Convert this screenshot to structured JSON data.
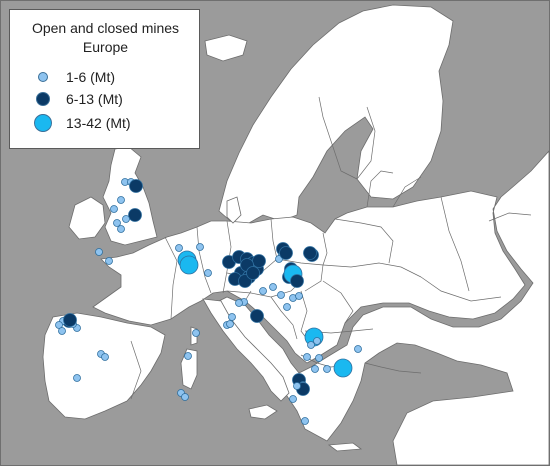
{
  "legend": {
    "title_line1": "Open and closed mines",
    "title_line2": "Europe",
    "items": [
      {
        "label": "1-6 (Mt)",
        "color": "#8ec3ef",
        "size_class": "small"
      },
      {
        "label": "6-13 (Mt)",
        "color": "#0b3a66",
        "size_class": "medium"
      },
      {
        "label": "13-42 (Mt)",
        "color": "#1ab8f0",
        "size_class": "large"
      }
    ]
  },
  "colors": {
    "sea": "#9b9b9b",
    "land": "#ffffff",
    "border": "#6d6d6d"
  },
  "mines": [
    {
      "class": "small"
    },
    {
      "class": "small"
    },
    {
      "class": "medium"
    },
    {
      "class": "small"
    },
    {
      "class": "small"
    },
    {
      "class": "medium"
    },
    {
      "class": "small"
    },
    {
      "class": "small"
    },
    {
      "class": "small"
    },
    {
      "class": "small"
    },
    {
      "class": "small"
    },
    {
      "class": "large"
    },
    {
      "class": "large"
    },
    {
      "class": "small"
    },
    {
      "class": "small"
    },
    {
      "class": "small"
    },
    {
      "class": "medium"
    },
    {
      "class": "medium"
    },
    {
      "class": "medium"
    },
    {
      "class": "medium"
    },
    {
      "class": "medium"
    },
    {
      "class": "medium"
    },
    {
      "class": "medium"
    },
    {
      "class": "medium"
    },
    {
      "class": "medium"
    },
    {
      "class": "medium"
    },
    {
      "class": "medium"
    },
    {
      "class": "medium"
    },
    {
      "class": "medium"
    },
    {
      "class": "small"
    },
    {
      "class": "small"
    },
    {
      "class": "medium"
    },
    {
      "class": "medium"
    },
    {
      "class": "medium"
    },
    {
      "class": "large"
    },
    {
      "class": "medium"
    },
    {
      "class": "medium"
    },
    {
      "class": "medium"
    },
    {
      "class": "small"
    },
    {
      "class": "small"
    },
    {
      "class": "small"
    },
    {
      "class": "small"
    },
    {
      "class": "small"
    },
    {
      "class": "small"
    },
    {
      "class": "small"
    },
    {
      "class": "small"
    },
    {
      "class": "medium"
    },
    {
      "class": "small"
    },
    {
      "class": "small"
    },
    {
      "class": "medium"
    },
    {
      "class": "small"
    },
    {
      "class": "small"
    },
    {
      "class": "small"
    },
    {
      "class": "small"
    },
    {
      "class": "small"
    },
    {
      "class": "medium"
    },
    {
      "class": "small"
    },
    {
      "class": "small"
    },
    {
      "class": "small"
    },
    {
      "class": "small"
    },
    {
      "class": "small"
    },
    {
      "class": "small"
    },
    {
      "class": "small"
    },
    {
      "class": "small"
    },
    {
      "class": "large"
    },
    {
      "class": "small"
    },
    {
      "class": "small"
    },
    {
      "class": "small"
    },
    {
      "class": "large"
    },
    {
      "class": "small"
    },
    {
      "class": "small"
    },
    {
      "class": "medium"
    },
    {
      "class": "small"
    },
    {
      "class": "medium"
    },
    {
      "class": "small"
    },
    {
      "class": "small"
    },
    {
      "class": "small"
    },
    {
      "class": "small"
    },
    {
      "class": "small"
    }
  ]
}
